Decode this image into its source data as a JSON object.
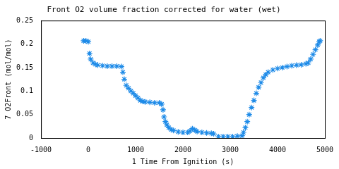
{
  "chart_data": {
    "type": "scatter",
    "title": "Front O2 volume fraction corrected for water (wet)",
    "x_label": "1 Time From Ignition (s)",
    "y_label": "7 O2Front (mol/mol)",
    "x": [
      -100,
      -50,
      0,
      25,
      50,
      100,
      150,
      200,
      300,
      400,
      500,
      600,
      700,
      730,
      760,
      800,
      850,
      900,
      950,
      1000,
      1050,
      1100,
      1150,
      1200,
      1300,
      1400,
      1500,
      1550,
      1580,
      1600,
      1630,
      1660,
      1700,
      1750,
      1800,
      1900,
      2000,
      2100,
      2150,
      2200,
      2250,
      2300,
      2400,
      2500,
      2600,
      2650,
      2750,
      2850,
      2950,
      3050,
      3150,
      3250,
      3280,
      3320,
      3360,
      3400,
      3450,
      3500,
      3550,
      3600,
      3650,
      3700,
      3750,
      3800,
      3900,
      4000,
      4100,
      4200,
      4300,
      4400,
      4500,
      4600,
      4650,
      4700,
      4750,
      4800,
      4850,
      4880,
      4900
    ],
    "values": [
      0.207,
      0.207,
      0.205,
      0.18,
      0.168,
      0.16,
      0.157,
      0.155,
      0.154,
      0.153,
      0.153,
      0.153,
      0.152,
      0.14,
      0.125,
      0.112,
      0.106,
      0.1,
      0.095,
      0.09,
      0.085,
      0.08,
      0.078,
      0.077,
      0.076,
      0.075,
      0.075,
      0.072,
      0.06,
      0.045,
      0.035,
      0.028,
      0.022,
      0.018,
      0.016,
      0.013,
      0.012,
      0.012,
      0.015,
      0.02,
      0.017,
      0.014,
      0.012,
      0.011,
      0.01,
      0.009,
      0.003,
      0.003,
      0.003,
      0.003,
      0.004,
      0.005,
      0.012,
      0.022,
      0.035,
      0.05,
      0.065,
      0.08,
      0.095,
      0.108,
      0.118,
      0.128,
      0.135,
      0.14,
      0.145,
      0.148,
      0.15,
      0.152,
      0.154,
      0.155,
      0.156,
      0.158,
      0.16,
      0.168,
      0.178,
      0.188,
      0.198,
      0.205,
      0.207
    ],
    "color": "#1e8be8",
    "marker": "star",
    "xlim": [
      -1000,
      5000
    ],
    "xticks": [
      -1000,
      0,
      1000,
      2000,
      3000,
      4000,
      5000
    ],
    "ylim": [
      0,
      0.25
    ],
    "yticks": [
      0,
      0.05,
      0.1,
      0.15,
      0.2,
      0.25
    ],
    "grid": false
  }
}
